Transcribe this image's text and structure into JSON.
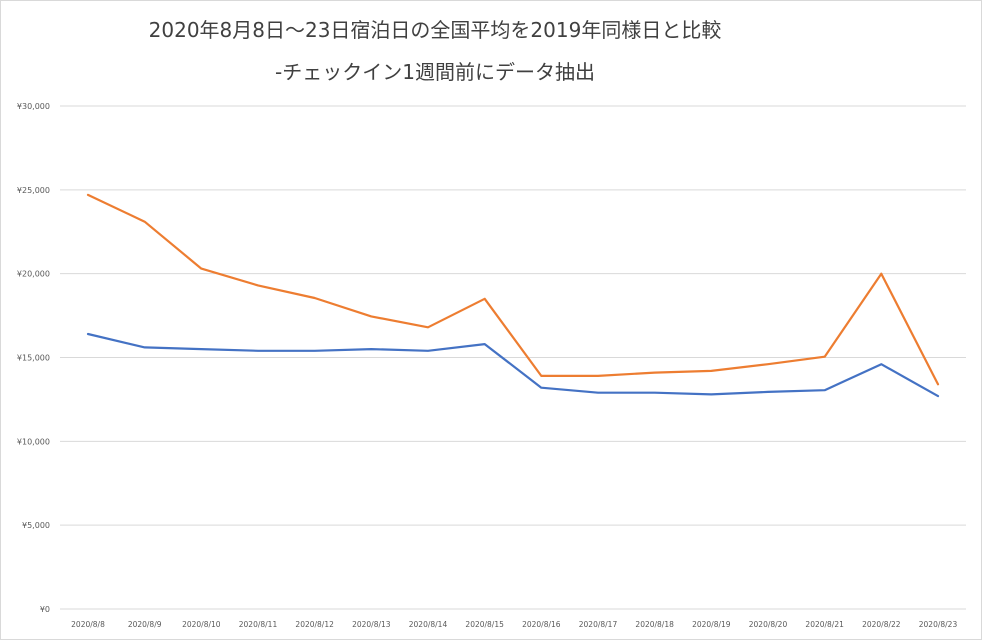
{
  "chart_data": {
    "type": "line",
    "title": "2020年8月8日～23日宿泊日の全国平均を2019年同様日と比較",
    "subtitle": "-チェックイン1週間前にデータ抽出",
    "xlabel": "",
    "ylabel": "",
    "categories": [
      "2020/8/8",
      "2020/8/9",
      "2020/8/10",
      "2020/8/11",
      "2020/8/12",
      "2020/8/13",
      "2020/8/14",
      "2020/8/15",
      "2020/8/16",
      "2020/8/17",
      "2020/8/18",
      "2020/8/19",
      "2020/8/20",
      "2020/8/21",
      "2020/8/22",
      "2020/8/23"
    ],
    "yticks": [
      "¥0",
      "¥5,000",
      "¥10,000",
      "¥15,000",
      "¥20,000",
      "¥25,000",
      "¥30,000"
    ],
    "ylim": [
      0,
      30000
    ],
    "grid": true,
    "legend": "none",
    "series": [
      {
        "color": "#4472c4",
        "values": [
          16400,
          15600,
          15500,
          15400,
          15400,
          15500,
          15400,
          15800,
          13200,
          12900,
          12900,
          12800,
          12950,
          13050,
          14600,
          12700
        ]
      },
      {
        "color": "#ed7d31",
        "values": [
          24700,
          23100,
          20300,
          19300,
          18550,
          17450,
          16800,
          18500,
          13900,
          13900,
          14100,
          14200,
          14600,
          15050,
          20000,
          13400
        ]
      }
    ]
  }
}
